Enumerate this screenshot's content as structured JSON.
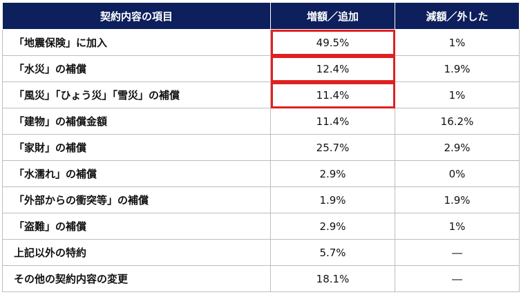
{
  "table": {
    "headers": [
      "契約内容の項目",
      "増額／追加",
      "減額／外した"
    ],
    "rows": [
      {
        "item": "「地震保険」に加入",
        "increase": "49.5%",
        "decrease": "1%",
        "highlight": true
      },
      {
        "item": "「水災」の補償",
        "increase": "12.4%",
        "decrease": "1.9%",
        "highlight": true
      },
      {
        "item": "「風災」「ひょう災」「雪災」の補償",
        "increase": "11.4%",
        "decrease": "1%",
        "highlight": true
      },
      {
        "item": "「建物」の補償金額",
        "increase": "11.4%",
        "decrease": "16.2%",
        "highlight": false
      },
      {
        "item": "「家財」の補償",
        "increase": "25.7%",
        "decrease": "2.9%",
        "highlight": false
      },
      {
        "item": "「水濡れ」の補償",
        "increase": "2.9%",
        "decrease": "0%",
        "highlight": false
      },
      {
        "item": "「外部からの衝突等」の補償",
        "increase": "1.9%",
        "decrease": "1.9%",
        "highlight": false
      },
      {
        "item": "「盗難」の補償",
        "increase": "2.9%",
        "decrease": "1%",
        "highlight": false
      },
      {
        "item": "上記以外の特約",
        "increase": "5.7%",
        "decrease": "―",
        "highlight": false
      },
      {
        "item": "その他の契約内容の変更",
        "increase": "18.1%",
        "decrease": "―",
        "highlight": false
      }
    ]
  },
  "colors": {
    "header_bg": "#0d1f5c",
    "highlight_border": "#e02020"
  }
}
